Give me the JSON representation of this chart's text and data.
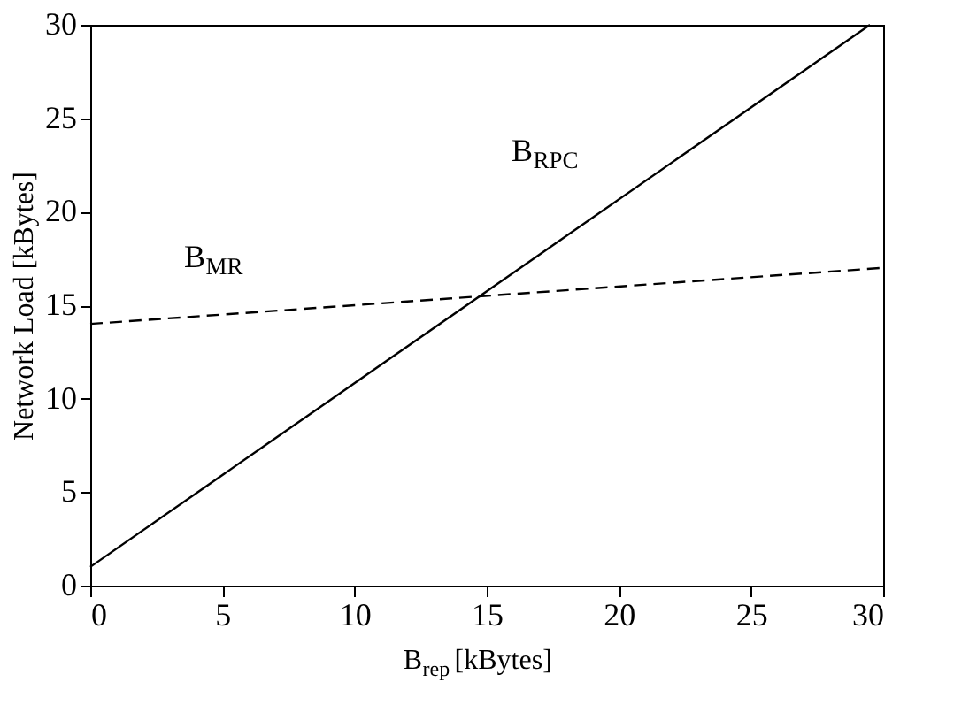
{
  "chart_data": {
    "type": "line",
    "xlabel": "B$_{rep}$ [kBytes]",
    "ylabel": "Network Load [kBytes]",
    "series": [
      {
        "name": "B$_{RPC}$",
        "color": "#000000",
        "line_style": "solid",
        "x": [
          0,
          29.5
        ],
        "values": [
          1,
          30
        ]
      },
      {
        "name": "B$_{MR}$",
        "color": "#000000",
        "line_style": "dashed",
        "x": [
          0,
          30
        ],
        "values": [
          14,
          17
        ]
      }
    ],
    "xlim": [
      0,
      30
    ],
    "xticks": [
      0,
      5,
      10,
      15,
      20,
      25,
      30
    ],
    "ylim": [
      0,
      30
    ],
    "yticks": [
      0,
      5,
      10,
      15,
      20,
      25,
      30
    ],
    "grid": false,
    "marker": "none"
  }
}
